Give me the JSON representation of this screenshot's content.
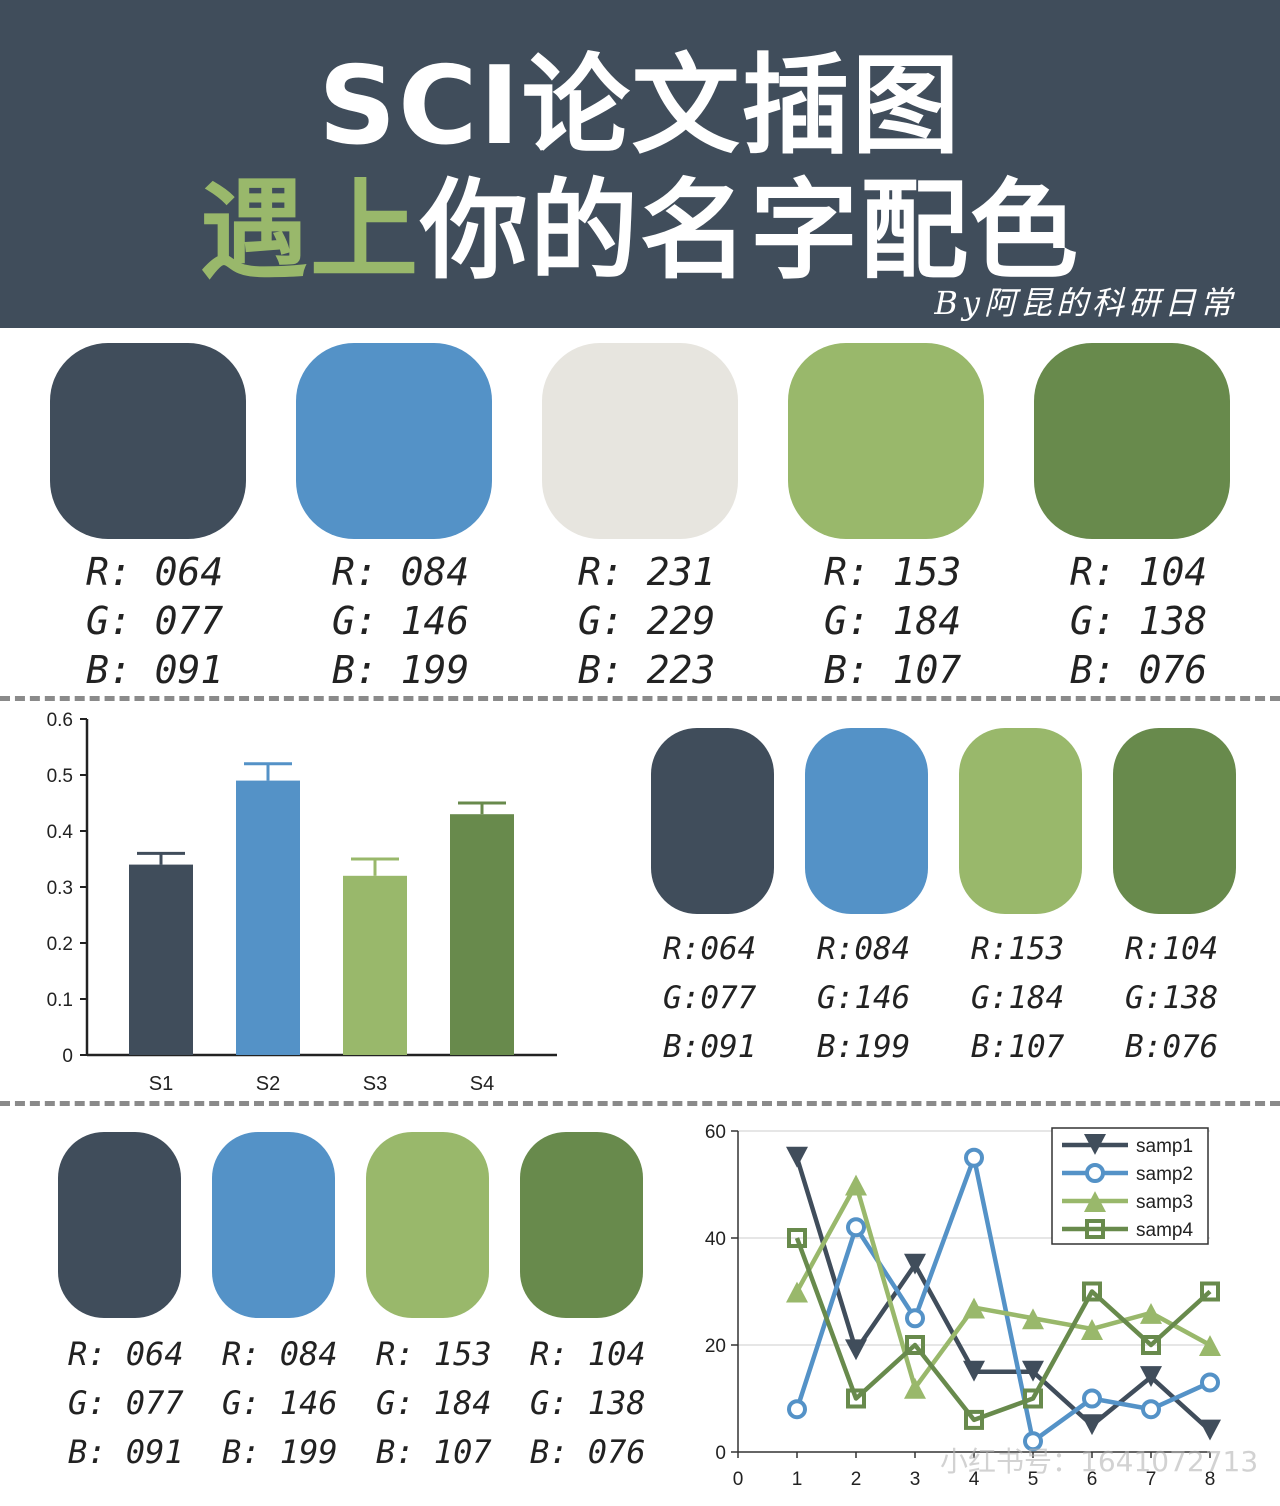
{
  "header": {
    "title_line1": "SCI论文插图",
    "title_line2_highlight": "遇上",
    "title_line2_rest": "你的名字配色",
    "byline": "By阿昆的科研日常",
    "background": "#404d5b",
    "highlight_color": "#99b86b"
  },
  "palette_top": [
    {
      "hex": "#404d5b",
      "r": "R: 064",
      "g": "G: 077",
      "b": "B: 091"
    },
    {
      "hex": "#5492c7",
      "r": "R: 084",
      "g": "G: 146",
      "b": "B: 199"
    },
    {
      "hex": "#e7e5df",
      "r": "R: 231",
      "g": "G: 229",
      "b": "B: 223"
    },
    {
      "hex": "#99b86b",
      "r": "R: 153",
      "g": "G: 184",
      "b": "B: 107"
    },
    {
      "hex": "#688a4c",
      "r": "R: 104",
      "g": "G: 138",
      "b": "B: 076"
    }
  ],
  "palette_mid": [
    {
      "hex": "#404d5b",
      "r": "R:064",
      "g": "G:077",
      "b": "B:091"
    },
    {
      "hex": "#5492c7",
      "r": "R:084",
      "g": "G:146",
      "b": "B:199"
    },
    {
      "hex": "#99b86b",
      "r": "R:153",
      "g": "G:184",
      "b": "B:107"
    },
    {
      "hex": "#688a4c",
      "r": "R:104",
      "g": "G:138",
      "b": "B:076"
    }
  ],
  "palette_bottom": [
    {
      "hex": "#404d5b",
      "r": "R: 064",
      "g": "G: 077",
      "b": "B: 091"
    },
    {
      "hex": "#5492c7",
      "r": "R: 084",
      "g": "G: 146",
      "b": "B: 199"
    },
    {
      "hex": "#99b86b",
      "r": "R: 153",
      "g": "G: 184",
      "b": "B: 107"
    },
    {
      "hex": "#688a4c",
      "r": "R: 104",
      "g": "G: 138",
      "b": "B: 076"
    }
  ],
  "watermark": "小红书号：1641072713",
  "chart_data": [
    {
      "type": "bar",
      "categories": [
        "S1",
        "S2",
        "S3",
        "S4"
      ],
      "values": [
        0.34,
        0.49,
        0.32,
        0.43
      ],
      "errors": [
        0.02,
        0.03,
        0.03,
        0.02
      ],
      "colors": [
        "#404d5b",
        "#5492c7",
        "#99b86b",
        "#688a4c"
      ],
      "ylim": [
        0,
        0.6
      ],
      "yticks": [
        "0",
        "0.1",
        "0.2",
        "0.3",
        "0.4",
        "0.5",
        "0.6"
      ],
      "grid": false
    },
    {
      "type": "line",
      "x": [
        1,
        2,
        3,
        4,
        5,
        6,
        7,
        8
      ],
      "xlim": [
        0,
        8
      ],
      "xticks": [
        "0",
        "1",
        "2",
        "3",
        "4",
        "5",
        "6",
        "7",
        "8"
      ],
      "ylim": [
        0,
        60
      ],
      "yticks": [
        "0",
        "20",
        "40",
        "60"
      ],
      "grid": true,
      "legend_position": "top-right",
      "series": [
        {
          "name": "samp1",
          "color": "#404d5b",
          "marker": "triangle-down",
          "values": [
            55,
            19,
            35,
            15,
            15,
            5,
            14,
            4
          ]
        },
        {
          "name": "samp2",
          "color": "#5492c7",
          "marker": "circle",
          "values": [
            8,
            42,
            25,
            55,
            2,
            10,
            8,
            13
          ]
        },
        {
          "name": "samp3",
          "color": "#99b86b",
          "marker": "triangle-up",
          "values": [
            30,
            50,
            12,
            27,
            25,
            23,
            26,
            20
          ]
        },
        {
          "name": "samp4",
          "color": "#688a4c",
          "marker": "square",
          "values": [
            40,
            10,
            20,
            6,
            10,
            30,
            20,
            30
          ]
        }
      ]
    }
  ]
}
